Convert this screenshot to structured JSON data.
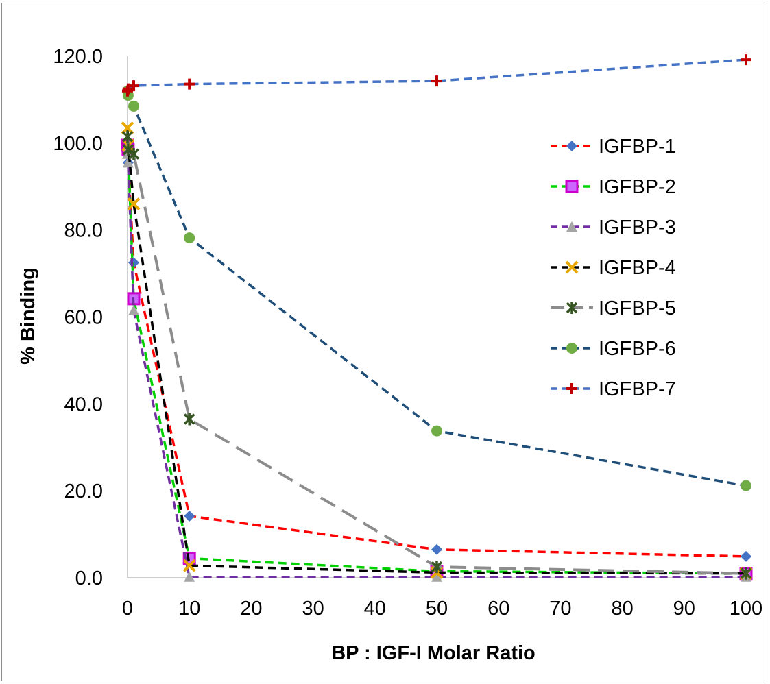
{
  "chart_data": {
    "type": "line",
    "title": "",
    "xlabel": "BP : IGF-I Molar Ratio",
    "ylabel": "% Binding",
    "xlim": [
      0,
      100
    ],
    "ylim": [
      0,
      120
    ],
    "x_ticks": [
      "0",
      "10",
      "20",
      "30",
      "40",
      "50",
      "60",
      "70",
      "80",
      "90",
      "100"
    ],
    "y_ticks": [
      "0.0",
      "20.0",
      "40.0",
      "60.0",
      "80.0",
      "100.0",
      "120.0"
    ],
    "grid": false,
    "legend_position": "right",
    "series": [
      {
        "name": "IGFBP-1",
        "line_color": "#ff0000",
        "marker": "diamond",
        "marker_color": "#4472c4",
        "x": [
          0,
          0.1,
          1,
          10,
          50,
          100
        ],
        "y": [
          100,
          95.5,
          72.5,
          14.2,
          6.5,
          4.9
        ]
      },
      {
        "name": "IGFBP-2",
        "line_color": "#00d000",
        "marker": "square",
        "marker_color": "#cc66ff",
        "marker_edge": "#cc00cc",
        "x": [
          0,
          0.1,
          1,
          10,
          50,
          100
        ],
        "y": [
          99.5,
          98.5,
          64.2,
          4.5,
          1.5,
          1.0
        ]
      },
      {
        "name": "IGFBP-3",
        "line_color": "#7030a0",
        "marker": "triangle",
        "marker_color": "#a5a5a5",
        "x": [
          0,
          0.1,
          1,
          10,
          50,
          100
        ],
        "y": [
          97.5,
          95.5,
          61.5,
          0.2,
          0.2,
          0.2
        ]
      },
      {
        "name": "IGFBP-4",
        "line_color": "#000000",
        "marker": "x",
        "marker_color": "#e8a800",
        "x": [
          0,
          0.1,
          1,
          10,
          50,
          100
        ],
        "y": [
          103.5,
          99.5,
          86.0,
          2.8,
          1.2,
          1.0
        ]
      },
      {
        "name": "IGFBP-5",
        "line_color": "#8c8c8c",
        "marker": "star",
        "marker_color": "#375623",
        "x": [
          0,
          0.1,
          1,
          10,
          50,
          100
        ],
        "y": [
          101.5,
          98.5,
          97.5,
          36.5,
          2.5,
          1.0
        ]
      },
      {
        "name": "IGFBP-6",
        "line_color": "#1f4e79",
        "marker": "circle",
        "marker_color": "#70ad47",
        "x": [
          0,
          0.1,
          1,
          10,
          50,
          100
        ],
        "y": [
          112,
          111,
          108.5,
          78.2,
          33.8,
          21.2
        ]
      },
      {
        "name": "IGFBP-7",
        "line_color": "#4472c4",
        "marker": "plus",
        "marker_color": "#c00000",
        "x": [
          0,
          0.1,
          1,
          10,
          50,
          100
        ],
        "y": [
          112,
          112.5,
          113.2,
          113.6,
          114.3,
          119.2
        ]
      }
    ]
  }
}
